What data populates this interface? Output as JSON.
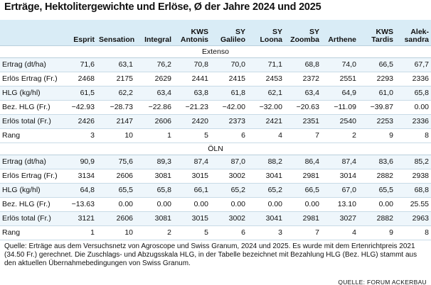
{
  "title": "Erträge, Hektolitergewichte und Erlöse, Ø der Jahre 2024 und 2025",
  "columns": [
    {
      "line1": "",
      "line2": "Esprit"
    },
    {
      "line1": "",
      "line2": "Sensation"
    },
    {
      "line1": "",
      "line2": "Integral"
    },
    {
      "line1": "KWS",
      "line2": "Antonis"
    },
    {
      "line1": "SY",
      "line2": "Galileo"
    },
    {
      "line1": "SY",
      "line2": "Loona"
    },
    {
      "line1": "SY",
      "line2": "Zoomba"
    },
    {
      "line1": "",
      "line2": "Arthene"
    },
    {
      "line1": "KWS",
      "line2": "Tardis"
    },
    {
      "line1": "Alek-",
      "line2": "sandra"
    }
  ],
  "sections": [
    {
      "name": "Extenso",
      "rows": [
        {
          "label": "Ertrag (dt/ha)",
          "values": [
            "71,6",
            "63,1",
            "76,2",
            "70,8",
            "70,0",
            "71,1",
            "68,8",
            "74,0",
            "66,5",
            "67,7"
          ]
        },
        {
          "label": "Erlös Ertrag (Fr.)",
          "values": [
            "2468",
            "2175",
            "2629",
            "2441",
            "2415",
            "2453",
            "2372",
            "2551",
            "2293",
            "2336"
          ]
        },
        {
          "label": "HLG (kg/hl)",
          "values": [
            "61,5",
            "62,2",
            "63,4",
            "63,8",
            "61,8",
            "62,1",
            "63,4",
            "64,9",
            "61,0",
            "65,8"
          ]
        },
        {
          "label": "Bez. HLG (Fr.)",
          "values": [
            "−42.93",
            "−28.73",
            "−22.86",
            "−21.23",
            "−42.00",
            "−32.00",
            "−20.63",
            "−11.09",
            "−39.87",
            "0.00"
          ]
        },
        {
          "label": "Erlös total (Fr.)",
          "values": [
            "2426",
            "2147",
            "2606",
            "2420",
            "2373",
            "2421",
            "2351",
            "2540",
            "2253",
            "2336"
          ]
        },
        {
          "label": "Rang",
          "values": [
            "3",
            "10",
            "1",
            "5",
            "6",
            "4",
            "7",
            "2",
            "9",
            "8"
          ]
        }
      ]
    },
    {
      "name": "ÖLN",
      "rows": [
        {
          "label": "Ertrag (dt/ha)",
          "values": [
            "90,9",
            "75,6",
            "89,3",
            "87,4",
            "87,0",
            "88,2",
            "86,4",
            "87,4",
            "83,6",
            "85,2"
          ]
        },
        {
          "label": "Erlös Ertrag (Fr.)",
          "values": [
            "3134",
            "2606",
            "3081",
            "3015",
            "3002",
            "3041",
            "2981",
            "3014",
            "2882",
            "2938"
          ]
        },
        {
          "label": "HLG (kg/hl)",
          "values": [
            "64,8",
            "65,5",
            "65,8",
            "66,1",
            "65,2",
            "65,2",
            "66,5",
            "67,0",
            "65,5",
            "68,8"
          ]
        },
        {
          "label": "Bez. HLG (Fr.)",
          "values": [
            "−13.63",
            "0.00",
            "0.00",
            "0.00",
            "0.00",
            "0.00",
            "0.00",
            "13.10",
            "0.00",
            "25.55"
          ]
        },
        {
          "label": "Erlös total (Fr.)",
          "values": [
            "3121",
            "2606",
            "3081",
            "3015",
            "3002",
            "3041",
            "2981",
            "3027",
            "2882",
            "2963"
          ]
        },
        {
          "label": "Rang",
          "values": [
            "1",
            "10",
            "2",
            "5",
            "6",
            "3",
            "7",
            "4",
            "9",
            "8"
          ]
        }
      ]
    }
  ],
  "footnote": "Quelle: Erträge aus dem Versuchsnetz von Agroscope und Swiss Granum, 2024 und 2025. Es wurde mit dem Ertenrichtpreis 2021 (34.50 Fr.) gerechnet. Die Zuschlags- und Abzugsskala HLG, in der Tabelle bezeichnet mit Bezahlung HLG (Bez. HLG) stammt aus den aktuellen Übernahmebedingungen von Swiss Granum.",
  "credit": "QUELLE: FORUM ACKERBAU"
}
